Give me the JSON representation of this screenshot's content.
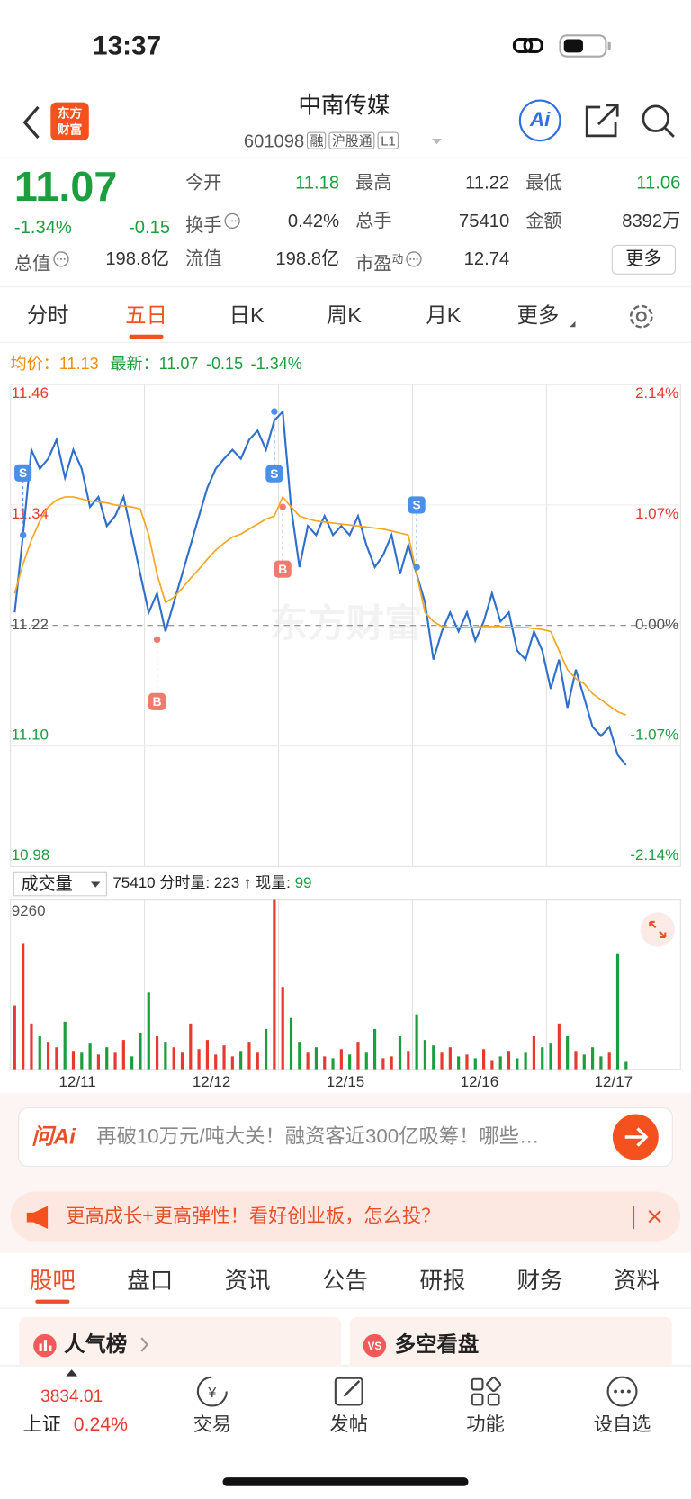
{
  "status": {
    "time": "13:37"
  },
  "header": {
    "logo": [
      "东方",
      "财富"
    ],
    "title": "中南传媒",
    "code": "601098",
    "tags": [
      "融",
      "沪股通",
      "L1"
    ],
    "ai": "Ai"
  },
  "quote": {
    "price": "11.07",
    "change_pct": "-1.34%",
    "change": "-0.15",
    "more": "更多",
    "fields": [
      {
        "label": "今开",
        "value": "11.18",
        "color": "#1b9e3e"
      },
      {
        "label": "最高",
        "value": "11.22",
        "color": "#333333"
      },
      {
        "label": "最低",
        "value": "11.06",
        "color": "#1b9e3e"
      },
      {
        "label": "换手",
        "value": "0.42%",
        "color": "#333333",
        "info": true
      },
      {
        "label": "总手",
        "value": "75410",
        "color": "#333333"
      },
      {
        "label": "金额",
        "value": "8392万",
        "color": "#333333"
      },
      {
        "label": "总值",
        "value": "198.8亿",
        "color": "#333333",
        "info": true
      },
      {
        "label": "流值",
        "value": "198.8亿",
        "color": "#333333"
      },
      {
        "label": "市盈",
        "sup": "动",
        "value": "12.74",
        "color": "#333333",
        "info": true
      }
    ]
  },
  "tabs": {
    "items": [
      "分时",
      "五日",
      "日K",
      "周K",
      "月K",
      "更多"
    ],
    "active": 1
  },
  "chart_data": {
    "type": "line",
    "legend": {
      "avg_label": "均价：",
      "avg": "11.13",
      "last_label": "最新：",
      "last": "11.07",
      "change": "-0.15",
      "change_pct": "-1.34%"
    },
    "watermark": "东方财富",
    "categories": [
      "12/11",
      "12/12",
      "12/15",
      "12/16",
      "12/17"
    ],
    "ylim": [
      10.98,
      11.46
    ],
    "yticks": [
      11.46,
      11.34,
      11.22,
      {
        "value": 11.1,
        "label": "11.10"
      },
      10.98
    ],
    "y2lim": [
      -2.14,
      2.14
    ],
    "y2ticks": [
      {
        "value": 2.14,
        "label": "2.14%"
      },
      {
        "value": 1.07,
        "label": "1.07%"
      },
      {
        "value": 0,
        "label": "0.00%"
      },
      {
        "value": -1.07,
        "label": "-1.07%"
      },
      {
        "value": -2.14,
        "label": "-2.14%"
      }
    ],
    "up_color": "#e8392f",
    "down_color": "#1b9e3e",
    "series": [
      {
        "color": "#2f6fcc",
        "values": [
          [
            11.233,
            11.31,
            11.395,
            11.376,
            11.386,
            11.405,
            11.367,
            11.395,
            11.376,
            11.338,
            11.348,
            11.319,
            11.329,
            11.348,
            11.31,
            11.271
          ],
          [
            11.233,
            11.252,
            11.214,
            11.243,
            11.271,
            11.3,
            11.329,
            11.357,
            11.376,
            11.386,
            11.395,
            11.386,
            11.405,
            11.414,
            11.395,
            11.424
          ],
          [
            11.433,
            11.338,
            11.278,
            11.319,
            11.31,
            11.329,
            11.31,
            11.319,
            11.31,
            11.329,
            11.3,
            11.278,
            11.29,
            11.31,
            11.271,
            11.3
          ],
          [
            11.271,
            11.243,
            11.186,
            11.214,
            11.233,
            11.214,
            11.233,
            11.205,
            11.224,
            11.252,
            11.224,
            11.233,
            11.195,
            11.186,
            11.214,
            11.195
          ],
          [
            11.157,
            11.186,
            11.138,
            11.176,
            11.148,
            11.119,
            11.11,
            11.119,
            11.091,
            11.081
          ]
        ]
      },
      {
        "color": "#f5a623",
        "values": [
          [
            11.252,
            11.281,
            11.305,
            11.324,
            11.338,
            11.345,
            11.348,
            11.348,
            11.346,
            11.344,
            11.343,
            11.342,
            11.34,
            11.339,
            11.338,
            11.336
          ],
          [
            11.31,
            11.271,
            11.243,
            11.248,
            11.257,
            11.267,
            11.276,
            11.286,
            11.295,
            11.302,
            11.308,
            11.311,
            11.316,
            11.321,
            11.326,
            11.329
          ],
          [
            11.348,
            11.338,
            11.329,
            11.326,
            11.324,
            11.323,
            11.322,
            11.321,
            11.32,
            11.319,
            11.318,
            11.317,
            11.316,
            11.314,
            11.312,
            11.31
          ],
          [
            11.271,
            11.233,
            11.224,
            11.219,
            11.218,
            11.218,
            11.218,
            11.218,
            11.219,
            11.219,
            11.219,
            11.218,
            11.218,
            11.218,
            11.217,
            11.216
          ],
          [
            11.214,
            11.195,
            11.176,
            11.167,
            11.162,
            11.152,
            11.146,
            11.14,
            11.134,
            11.131
          ]
        ]
      }
    ],
    "trades": [
      {
        "label": "S",
        "day": "12/11",
        "slot": 1,
        "value": 11.31
      },
      {
        "label": "B",
        "day": "12/12",
        "slot": 1,
        "value": 11.206
      },
      {
        "label": "S",
        "day": "12/12",
        "slot": 15,
        "value": 11.433
      },
      {
        "label": "B",
        "day": "12/15",
        "slot": 0,
        "value": 11.338
      },
      {
        "label": "S",
        "day": "12/16",
        "slot": 0,
        "value": 11.278
      }
    ],
    "volume": {
      "label": "成交量",
      "total": "75410",
      "tick_label": "分时量:",
      "tick": "223",
      "arrow": "↑",
      "now_label": "现量:",
      "now": "99",
      "ylim": [
        0,
        9260
      ],
      "yticks": [
        9260
      ],
      "values": [
        [
          3500,
          6900,
          2500,
          1800,
          1500,
          1200,
          2600,
          1000,
          900,
          1400,
          800,
          1200,
          900,
          1600,
          700,
          2000
        ],
        [
          4200,
          1800,
          1500,
          1200,
          900,
          2500,
          1100,
          1600,
          800,
          1300,
          700,
          1000,
          1500,
          900,
          2200,
          9260
        ],
        [
          4500,
          2800,
          1500,
          900,
          1200,
          700,
          600,
          1100,
          800,
          1500,
          900,
          2200,
          600,
          700,
          1800,
          1000
        ],
        [
          3000,
          1600,
          1300,
          900,
          1200,
          700,
          800,
          600,
          1100,
          500,
          700,
          1000,
          600,
          900,
          1800,
          1200
        ],
        [
          1400,
          2500,
          1800,
          1000,
          800,
          1200,
          700,
          900,
          6300,
          400
        ]
      ]
    }
  },
  "ai_box": {
    "brand": "问Ai",
    "text": "再破10万元/吨大关！融资客近300亿吸筹！哪些…"
  },
  "banner": {
    "text": "更高成长+更高弹性！看好创业板，怎么投？"
  },
  "sections": {
    "tabs": [
      "股吧",
      "盘口",
      "资讯",
      "公告",
      "研报",
      "财务",
      "资料"
    ],
    "active": 0,
    "cards": [
      "人气榜",
      "多空看盘"
    ]
  },
  "bottom_nav": {
    "index": {
      "value": "3834.01",
      "name": "上证",
      "change": "0.24%"
    },
    "items": [
      "交易",
      "发帖",
      "功能",
      "设自选"
    ]
  }
}
